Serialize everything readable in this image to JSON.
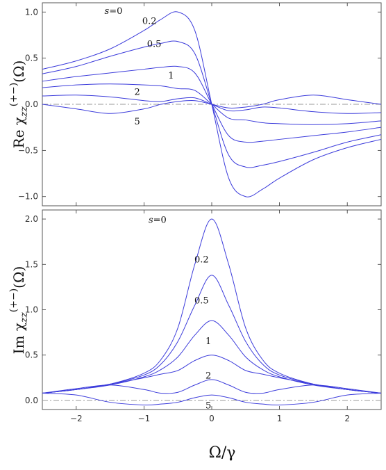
{
  "chart_data": [
    {
      "type": "line",
      "ylabel": "Re χ_zz^(+−)(Ω)",
      "ylabel_parts": {
        "prefix": "Re χ",
        "sub": "zz",
        "sup": "(+−)",
        "suffix": "(Ω)"
      },
      "xlim": [
        -2.5,
        2.5
      ],
      "ylim": [
        -1.1,
        1.1
      ],
      "xticks": [
        -2,
        -1,
        0,
        1,
        2
      ],
      "yticks": [
        -1.0,
        -0.5,
        0.0,
        0.5,
        1.0
      ],
      "ytick_labels": [
        "−1.0",
        "−0.5",
        "0.0",
        "0.5",
        "1.0"
      ],
      "grid": false,
      "reference_line": 0,
      "color": "#3b3bdb",
      "series_labels": [
        "s=0",
        "0.2",
        "0.5",
        "1",
        "2",
        "5"
      ],
      "series": [
        {
          "s": 0,
          "x": [
            -2.5,
            -2,
            -1.5,
            -1,
            -0.75,
            -0.5,
            -0.25,
            0,
            0.25,
            0.5,
            0.75,
            1,
            1.5,
            2,
            2.5
          ],
          "values": [
            0.38,
            0.47,
            0.6,
            0.8,
            0.92,
            1.0,
            0.8,
            0,
            -0.8,
            -1.0,
            -0.92,
            -0.8,
            -0.6,
            -0.47,
            -0.38
          ]
        },
        {
          "s": 0.2,
          "x": [
            -2.5,
            -2,
            -1.5,
            -1,
            -0.75,
            -0.5,
            -0.25,
            0,
            0.25,
            0.5,
            0.75,
            1,
            1.5,
            2,
            2.5
          ],
          "values": [
            0.33,
            0.41,
            0.52,
            0.62,
            0.66,
            0.68,
            0.55,
            0,
            -0.55,
            -0.68,
            -0.66,
            -0.62,
            -0.52,
            -0.41,
            -0.33
          ]
        },
        {
          "s": 0.5,
          "x": [
            -2.5,
            -2,
            -1.5,
            -1,
            -0.75,
            -0.5,
            -0.25,
            0,
            0.25,
            0.5,
            0.75,
            1,
            1.5,
            2,
            2.5
          ],
          "values": [
            0.25,
            0.3,
            0.34,
            0.38,
            0.4,
            0.41,
            0.34,
            0,
            -0.34,
            -0.41,
            -0.4,
            -0.38,
            -0.34,
            -0.3,
            -0.25
          ]
        },
        {
          "s": 1,
          "x": [
            -2.5,
            -2,
            -1.5,
            -1,
            -0.75,
            -0.5,
            -0.25,
            0,
            0.25,
            0.5,
            0.75,
            1,
            1.5,
            2,
            2.5
          ],
          "values": [
            0.18,
            0.21,
            0.22,
            0.21,
            0.2,
            0.17,
            0.15,
            0,
            -0.15,
            -0.17,
            -0.2,
            -0.21,
            -0.22,
            -0.21,
            -0.18
          ]
        },
        {
          "s": 2,
          "x": [
            -2.5,
            -2,
            -1.5,
            -1,
            -0.75,
            -0.5,
            -0.25,
            0,
            0.25,
            0.5,
            0.75,
            1,
            1.5,
            2,
            2.5
          ],
          "values": [
            0.09,
            0.1,
            0.08,
            0.04,
            0.03,
            0.06,
            0.07,
            0,
            -0.07,
            -0.06,
            -0.03,
            -0.04,
            -0.08,
            -0.1,
            -0.09
          ]
        },
        {
          "s": 5,
          "x": [
            -2.5,
            -2,
            -1.5,
            -1,
            -0.75,
            -0.5,
            -0.25,
            0,
            0.25,
            0.5,
            0.75,
            1,
            1.5,
            2,
            2.5
          ],
          "values": [
            0.0,
            -0.05,
            -0.1,
            -0.05,
            0.0,
            0.03,
            0.04,
            0,
            -0.04,
            -0.03,
            0.0,
            0.05,
            0.1,
            0.05,
            0.0
          ]
        }
      ]
    },
    {
      "type": "line",
      "xlabel": "Ω/γ",
      "ylabel": "Im χ_zz^(+−)(Ω)",
      "ylabel_parts": {
        "prefix": "Im χ",
        "sub": "zz",
        "sup": "(+−)",
        "suffix": "(Ω)"
      },
      "xlim": [
        -2.5,
        2.5
      ],
      "ylim": [
        -0.1,
        2.1
      ],
      "xticks": [
        -2,
        -1,
        0,
        1,
        2
      ],
      "xtick_labels": [
        "−2",
        "−1",
        "0",
        "1",
        "2"
      ],
      "yticks": [
        0.0,
        0.5,
        1.0,
        1.5,
        2.0
      ],
      "ytick_labels": [
        "0.0",
        "0.5",
        "1.0",
        "1.5",
        "2.0"
      ],
      "grid": false,
      "reference_line": 0,
      "color": "#3b3bdb",
      "series_labels": [
        "s=0",
        "0.2",
        "0.5",
        "1",
        "2",
        "5"
      ],
      "series": [
        {
          "s": 0,
          "x": [
            -2.5,
            -2,
            -1.5,
            -1,
            -0.75,
            -0.5,
            -0.25,
            0,
            0.25,
            0.5,
            0.75,
            1,
            1.5,
            2,
            2.5
          ],
          "values": [
            0.08,
            0.12,
            0.18,
            0.3,
            0.45,
            0.8,
            1.5,
            2.0,
            1.5,
            0.8,
            0.45,
            0.3,
            0.18,
            0.12,
            0.08
          ]
        },
        {
          "s": 0.2,
          "x": [
            -2.5,
            -2,
            -1.5,
            -1,
            -0.75,
            -0.5,
            -0.25,
            0,
            0.25,
            0.5,
            0.75,
            1,
            1.5,
            2,
            2.5
          ],
          "values": [
            0.08,
            0.12,
            0.18,
            0.28,
            0.4,
            0.65,
            1.05,
            1.38,
            1.05,
            0.65,
            0.4,
            0.28,
            0.18,
            0.12,
            0.08
          ]
        },
        {
          "s": 0.5,
          "x": [
            -2.5,
            -2,
            -1.5,
            -1,
            -0.75,
            -0.5,
            -0.25,
            0,
            0.25,
            0.5,
            0.75,
            1,
            1.5,
            2,
            2.5
          ],
          "values": [
            0.08,
            0.12,
            0.17,
            0.26,
            0.34,
            0.48,
            0.72,
            0.88,
            0.72,
            0.48,
            0.34,
            0.26,
            0.17,
            0.12,
            0.08
          ]
        },
        {
          "s": 1,
          "x": [
            -2.5,
            -2,
            -1.5,
            -1,
            -0.75,
            -0.5,
            -0.25,
            0,
            0.25,
            0.5,
            0.75,
            1,
            1.5,
            2,
            2.5
          ],
          "values": [
            0.08,
            0.12,
            0.18,
            0.25,
            0.29,
            0.33,
            0.44,
            0.5,
            0.44,
            0.33,
            0.29,
            0.25,
            0.18,
            0.12,
            0.08
          ]
        },
        {
          "s": 2,
          "x": [
            -2.5,
            -2,
            -1.5,
            -1,
            -0.75,
            -0.5,
            -0.25,
            0,
            0.25,
            0.5,
            0.75,
            1,
            1.5,
            2,
            2.5
          ],
          "values": [
            0.08,
            0.13,
            0.17,
            0.12,
            0.08,
            0.09,
            0.17,
            0.23,
            0.17,
            0.09,
            0.08,
            0.12,
            0.17,
            0.13,
            0.08
          ]
        },
        {
          "s": 5,
          "x": [
            -2.5,
            -2,
            -1.5,
            -1,
            -0.75,
            -0.5,
            -0.25,
            0,
            0.25,
            0.5,
            0.75,
            1,
            1.5,
            2,
            2.5
          ],
          "values": [
            0.08,
            0.06,
            -0.02,
            -0.05,
            -0.04,
            -0.02,
            0.03,
            0.06,
            0.03,
            -0.02,
            -0.04,
            -0.05,
            -0.02,
            0.06,
            0.08
          ]
        }
      ]
    }
  ]
}
